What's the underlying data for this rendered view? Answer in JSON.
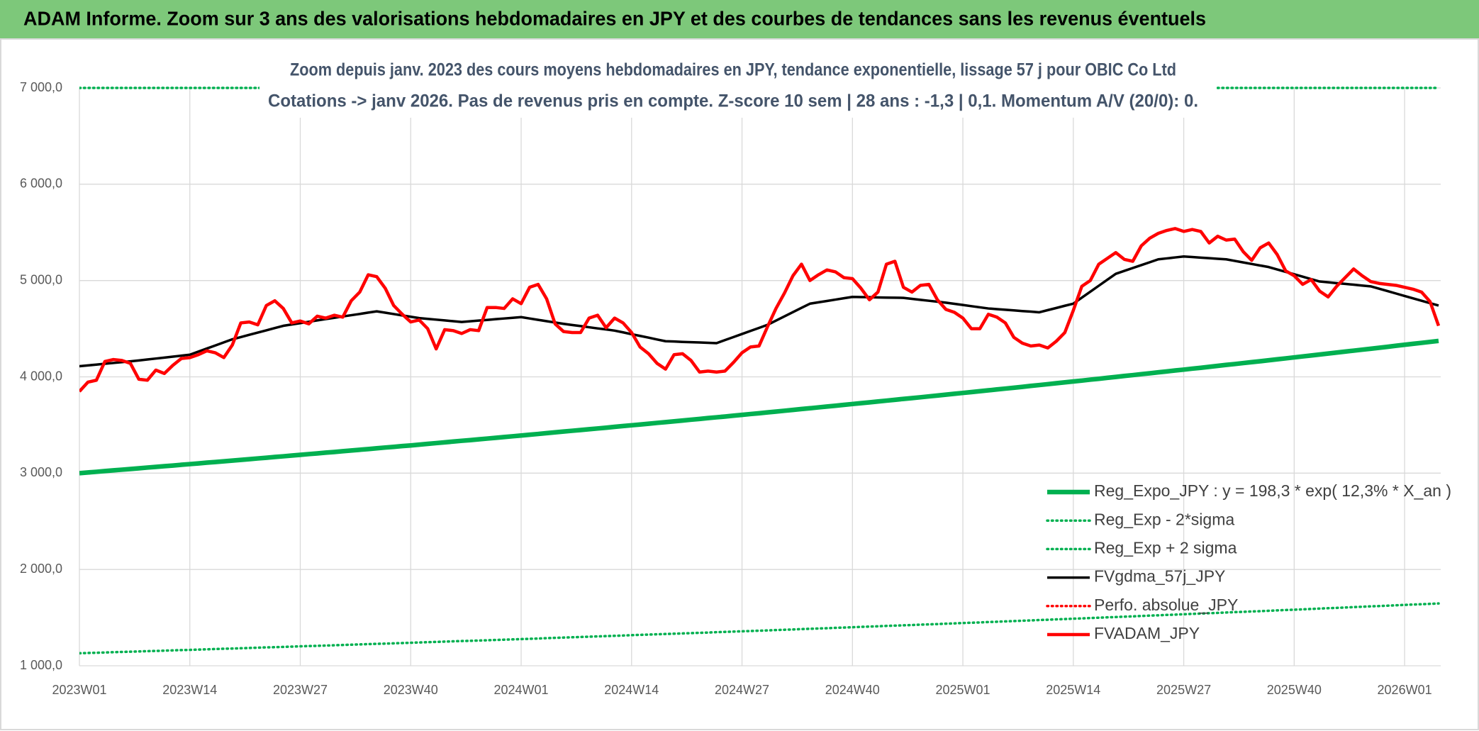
{
  "header": {
    "title": "ADAM Informe. Zoom sur 3 ans des valorisations hebdomadaires en JPY et des courbes de tendances sans les revenus éventuels"
  },
  "chart_data": {
    "type": "line",
    "title": "Zoom depuis janv. 2023 des cours moyens hebdomadaires en JPY, tendance exponentielle, lissage 57 j pour OBIC Co Ltd",
    "subtitle": "Cotations -> janv 2026. Pas de revenus pris en compte. Z-score 10 sem | 28 ans : -1,3 | 0,1. Momentum A/V (20/0): 0.",
    "categories": [
      "2023W01",
      null,
      null,
      null,
      null,
      null,
      null,
      null,
      null,
      null,
      null,
      null,
      null,
      "2023W14",
      null,
      null,
      null,
      null,
      null,
      null,
      null,
      null,
      null,
      null,
      null,
      null,
      "2023W27",
      null,
      null,
      null,
      null,
      null,
      null,
      null,
      null,
      null,
      null,
      null,
      null,
      "2023W40",
      null,
      null,
      null,
      null,
      null,
      null,
      null,
      null,
      null,
      null,
      null,
      null,
      "2024W01",
      null,
      null,
      null,
      null,
      null,
      null,
      null,
      null,
      null,
      null,
      null,
      null,
      "2024W14",
      null,
      null,
      null,
      null,
      null,
      null,
      null,
      null,
      null,
      null,
      null,
      null,
      "2024W27",
      null,
      null,
      null,
      null,
      null,
      null,
      null,
      null,
      null,
      null,
      null,
      null,
      "2024W40",
      null,
      null,
      null,
      null,
      null,
      null,
      null,
      null,
      null,
      null,
      null,
      null,
      "2025W01",
      null,
      null,
      null,
      null,
      null,
      null,
      null,
      null,
      null,
      null,
      null,
      null,
      "2025W14",
      null,
      null,
      null,
      null,
      null,
      null,
      null,
      null,
      null,
      null,
      null,
      null,
      "2025W27",
      null,
      null,
      null,
      null,
      null,
      null,
      null,
      null,
      null,
      null,
      null,
      null,
      "2025W40",
      null,
      null,
      null,
      null,
      null,
      null,
      null,
      null,
      null,
      null,
      null,
      null,
      "2026W01",
      null,
      null,
      null,
      null
    ],
    "ylim": [
      1000,
      7000
    ],
    "yticks": [
      {
        "value": 1000,
        "label": "1 000,0"
      },
      {
        "value": 2000,
        "label": "2 000,0"
      },
      {
        "value": 3000,
        "label": "3 000,0"
      },
      {
        "value": 4000,
        "label": "4 000,0"
      },
      {
        "value": 5000,
        "label": "5 000,0"
      },
      {
        "value": 6000,
        "label": "6 000,0"
      },
      {
        "value": 7000,
        "label": "7 000,0"
      }
    ],
    "grid": true,
    "legend": "lower right",
    "series": [
      {
        "name": "Reg_Expo_JPY : y = 198,3 * exp( 12,3% *  X_an )",
        "color": "#00b050",
        "style": "solid",
        "values": [
          3000,
          3007,
          3014,
          3022,
          3029,
          3036,
          3043,
          3050,
          3058,
          3065,
          3072,
          3079,
          3087,
          3094,
          3101,
          3109,
          3116,
          3123,
          3130,
          3138,
          3145,
          3153,
          3160,
          3168,
          3175,
          3183,
          3190,
          3198,
          3205,
          3213,
          3220,
          3228,
          3235,
          3243,
          3250,
          3258,
          3266,
          3273,
          3281,
          3288,
          3296,
          3304,
          3312,
          3320,
          3328,
          3336,
          3343,
          3351,
          3359,
          3367,
          3375,
          3383,
          3391,
          3399,
          3407,
          3416,
          3424,
          3432,
          3440,
          3448,
          3456,
          3464,
          3472,
          3481,
          3489,
          3497,
          3505,
          3513,
          3522,
          3530,
          3538,
          3546,
          3555,
          3563,
          3572,
          3580,
          3588,
          3597,
          3605,
          3614,
          3622,
          3631,
          3639,
          3648,
          3657,
          3666,
          3674,
          3683,
          3692,
          3700,
          3709,
          3718,
          3727,
          3735,
          3744,
          3753,
          3762,
          3771,
          3779,
          3788,
          3797,
          3806,
          3815,
          3824,
          3833,
          3842,
          3851,
          3860,
          3869,
          3878,
          3887,
          3896,
          3906,
          3915,
          3924,
          3934,
          3943,
          3952,
          3961,
          3971,
          3980,
          3990,
          3999,
          4009,
          4018,
          4028,
          4037,
          4047,
          4056,
          4066,
          4075,
          4085,
          4094,
          4104,
          4114,
          4124,
          4133,
          4143,
          4153,
          4162,
          4172,
          4182,
          4192,
          4202,
          4212,
          4222,
          4232,
          4242,
          4252,
          4262,
          4272,
          4282,
          4292,
          4302,
          4312,
          4323,
          4333,
          4343,
          4353,
          4363,
          4373
        ]
      },
      {
        "name": "Reg_Exp - 2*sigma",
        "color": "#00b050",
        "style": "dotted",
        "values": [
          1130,
          1133,
          1135,
          1138,
          1141,
          1144,
          1146,
          1149,
          1152,
          1154,
          1157,
          1160,
          1163,
          1165,
          1168,
          1171,
          1174,
          1177,
          1179,
          1182,
          1185,
          1188,
          1191,
          1193,
          1196,
          1199,
          1202,
          1205,
          1207,
          1210,
          1213,
          1216,
          1219,
          1222,
          1225,
          1228,
          1230,
          1233,
          1236,
          1239,
          1242,
          1245,
          1248,
          1251,
          1254,
          1257,
          1259,
          1262,
          1265,
          1268,
          1271,
          1274,
          1277,
          1280,
          1283,
          1287,
          1290,
          1293,
          1296,
          1299,
          1302,
          1305,
          1308,
          1311,
          1314,
          1318,
          1321,
          1324,
          1327,
          1330,
          1333,
          1336,
          1339,
          1342,
          1345,
          1349,
          1352,
          1355,
          1358,
          1361,
          1364,
          1367,
          1371,
          1374,
          1377,
          1381,
          1384,
          1387,
          1390,
          1394,
          1397,
          1400,
          1404,
          1407,
          1410,
          1414,
          1417,
          1420,
          1423,
          1427,
          1430,
          1433,
          1437,
          1440,
          1444,
          1447,
          1450,
          1454,
          1457,
          1461,
          1464,
          1468,
          1471,
          1475,
          1478,
          1482,
          1485,
          1489,
          1492,
          1496,
          1499,
          1503,
          1506,
          1510,
          1513,
          1517,
          1521,
          1524,
          1528,
          1531,
          1535,
          1539,
          1542,
          1546,
          1549,
          1553,
          1557,
          1560,
          1564,
          1567,
          1571,
          1575,
          1579,
          1582,
          1586,
          1590,
          1594,
          1598,
          1601,
          1605,
          1609,
          1613,
          1617,
          1620,
          1624,
          1628,
          1632,
          1636,
          1639,
          1643,
          1647
        ]
      },
      {
        "name": "Reg_Exp + 2 sigma",
        "color": "#00b050",
        "style": "dotted",
        "values": [
          7000,
          7000,
          7000,
          7000,
          7000,
          7000,
          7000,
          7000,
          7000,
          7000,
          7000,
          7000,
          7000,
          7000,
          7000,
          7000,
          7000,
          7000,
          7000,
          7000,
          7000,
          7000,
          7000,
          7000,
          7000,
          7000,
          7000,
          7000,
          7000,
          7000,
          7000,
          7000,
          7000,
          7000,
          7000,
          7000,
          7000,
          7000,
          7000,
          7000,
          7000,
          7000,
          7000,
          7000,
          7000,
          7000,
          7000,
          7000,
          7000,
          7000,
          7000,
          7000,
          7000,
          7000,
          7000,
          7000,
          7000,
          7000,
          7000,
          7000,
          7000,
          7000,
          7000,
          7000,
          7000,
          7000,
          7000,
          7000,
          7000,
          7000,
          7000,
          7000,
          7000,
          7000,
          7000,
          7000,
          7000,
          7000,
          7000,
          7000,
          7000,
          7000,
          7000,
          7000,
          7000,
          7000,
          7000,
          7000,
          7000,
          7000,
          7000,
          7000,
          7000,
          7000,
          7000,
          7000,
          7000,
          7000,
          7000,
          7000,
          7000,
          7000,
          7000,
          7000,
          7000,
          7000,
          7000,
          7000,
          7000,
          7000,
          7000,
          7000,
          7000,
          7000,
          7000,
          7000,
          7000,
          7000,
          7000,
          7000,
          7000,
          7000,
          7000,
          7000,
          7000,
          7000,
          7000,
          7000,
          7000,
          7000,
          7000,
          7000,
          7000,
          7000,
          7000,
          7000,
          7000,
          7000,
          7000,
          7000,
          7000,
          7000,
          7000,
          7000,
          7000,
          7000,
          7000,
          7000,
          7000,
          7000,
          7000,
          7000,
          7000,
          7000,
          7000,
          7000,
          7000,
          7000,
          7000,
          7000,
          7000
        ]
      },
      {
        "name": "FVgdma_57j_JPY",
        "color": "#000000",
        "style": "solid",
        "values": [
          4110,
          4119,
          4127,
          4136,
          4144,
          4153,
          4161,
          4170,
          4180,
          4190,
          4200,
          4210,
          4220,
          4230,
          4262,
          4294,
          4326,
          4358,
          4390,
          4413,
          4437,
          4460,
          4483,
          4507,
          4530,
          4544,
          4558,
          4572,
          4586,
          4600,
          4613,
          4627,
          4640,
          4653,
          4667,
          4680,
          4666,
          4652,
          4638,
          4624,
          4610,
          4602,
          4594,
          4586,
          4578,
          4570,
          4577,
          4584,
          4591,
          4599,
          4606,
          4613,
          4620,
          4606,
          4592,
          4578,
          4564,
          4550,
          4538,
          4527,
          4515,
          4503,
          4492,
          4480,
          4462,
          4443,
          4425,
          4407,
          4388,
          4370,
          4367,
          4363,
          4360,
          4357,
          4353,
          4350,
          4382,
          4413,
          4445,
          4477,
          4508,
          4540,
          4584,
          4628,
          4672,
          4716,
          4760,
          4774,
          4788,
          4802,
          4816,
          4830,
          4828,
          4827,
          4825,
          4823,
          4822,
          4820,
          4810,
          4800,
          4790,
          4780,
          4770,
          4758,
          4746,
          4734,
          4722,
          4710,
          4703,
          4697,
          4690,
          4683,
          4677,
          4670,
          4693,
          4715,
          4738,
          4760,
          4822,
          4884,
          4946,
          5008,
          5070,
          5100,
          5130,
          5160,
          5190,
          5220,
          5230,
          5240,
          5250,
          5244,
          5238,
          5232,
          5226,
          5220,
          5204,
          5188,
          5172,
          5156,
          5140,
          5115,
          5090,
          5065,
          5040,
          5015,
          4990,
          4982,
          4973,
          4965,
          4957,
          4948,
          4940,
          4915,
          4890,
          4865,
          4840,
          4815,
          4790,
          4765,
          4740
        ]
      },
      {
        "name": "Perfo. absolue_JPY",
        "color": "#ff0000",
        "style": "dotted",
        "values": [
          null,
          null,
          null,
          null,
          null,
          null,
          null,
          null,
          null,
          null,
          null,
          null,
          null,
          null,
          null,
          null,
          null,
          null,
          null,
          null,
          null,
          null,
          null,
          null,
          null,
          null,
          null,
          null,
          null,
          null,
          null,
          null,
          null,
          null,
          null,
          null,
          null,
          null,
          null,
          null,
          null,
          null,
          null,
          null,
          null,
          null,
          null,
          null,
          null,
          null,
          null,
          null,
          null,
          null,
          null,
          null,
          null,
          null,
          null,
          null,
          null,
          null,
          null,
          null,
          null,
          null,
          null,
          null,
          null,
          null,
          null,
          null,
          null,
          null,
          null,
          null,
          null,
          null,
          null,
          null,
          null,
          null,
          null,
          null,
          null,
          null,
          null,
          null,
          null,
          null,
          null,
          null,
          null,
          null,
          null,
          null,
          null,
          null,
          null,
          null,
          null,
          null,
          null,
          null,
          null,
          null,
          null,
          null,
          null,
          null,
          null,
          null,
          null,
          null,
          null,
          null,
          null,
          null,
          null,
          null,
          null,
          null,
          null,
          null,
          null,
          null,
          null,
          null,
          null,
          null,
          null,
          null,
          null,
          null,
          null,
          null,
          null,
          null,
          null,
          null,
          null,
          null,
          null,
          null,
          null,
          null,
          null,
          null,
          null,
          null,
          null,
          null,
          null,
          null,
          null,
          null,
          null,
          null,
          null,
          null,
          null
        ]
      },
      {
        "name": "FVADAM_JPY",
        "color": "#ff0000",
        "style": "solid",
        "values": [
          3848,
          3945,
          3965,
          4160,
          4180,
          4170,
          4140,
          3975,
          3965,
          4070,
          4035,
          4120,
          4190,
          4200,
          4230,
          4270,
          4250,
          4200,
          4330,
          4560,
          4570,
          4540,
          4740,
          4790,
          4710,
          4560,
          4580,
          4550,
          4630,
          4610,
          4640,
          4620,
          4790,
          4880,
          5060,
          5040,
          4920,
          4740,
          4650,
          4570,
          4590,
          4500,
          4290,
          4490,
          4480,
          4450,
          4490,
          4480,
          4720,
          4720,
          4710,
          4810,
          4760,
          4930,
          4960,
          4810,
          4550,
          4470,
          4460,
          4460,
          4610,
          4640,
          4510,
          4610,
          4560,
          4460,
          4310,
          4240,
          4140,
          4080,
          4230,
          4240,
          4170,
          4050,
          4060,
          4050,
          4060,
          4150,
          4250,
          4310,
          4320,
          4520,
          4710,
          4870,
          5050,
          5170,
          5000,
          5060,
          5110,
          5090,
          5030,
          5020,
          4920,
          4800,
          4880,
          5170,
          5200,
          4930,
          4880,
          4950,
          4960,
          4800,
          4700,
          4670,
          4610,
          4500,
          4500,
          4650,
          4620,
          4560,
          4410,
          4350,
          4320,
          4330,
          4300,
          4370,
          4460,
          4690,
          4940,
          5000,
          5170,
          5230,
          5290,
          5220,
          5200,
          5360,
          5440,
          5490,
          5520,
          5540,
          5510,
          5530,
          5510,
          5390,
          5460,
          5420,
          5430,
          5300,
          5210,
          5340,
          5390,
          5270,
          5100,
          5050,
          4960,
          5010,
          4890,
          4830,
          4940,
          5030,
          5120,
          5050,
          4990,
          4970,
          4960,
          4950,
          4930,
          4910,
          4880,
          4780,
          4530
        ]
      }
    ]
  }
}
